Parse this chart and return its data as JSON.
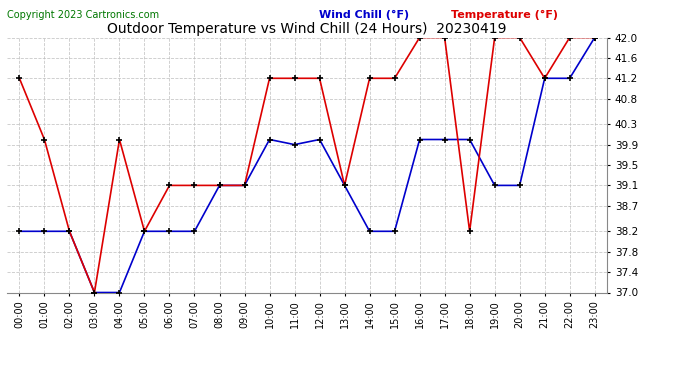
{
  "title": "Outdoor Temperature vs Wind Chill (24 Hours)  20230419",
  "copyright": "Copyright 2023 Cartronics.com",
  "legend_wind_chill": "Wind Chill (°F)",
  "legend_temperature": "Temperature (°F)",
  "hours": [
    0,
    1,
    2,
    3,
    4,
    5,
    6,
    7,
    8,
    9,
    10,
    11,
    12,
    13,
    14,
    15,
    16,
    17,
    18,
    19,
    20,
    21,
    22,
    23
  ],
  "temperature": [
    41.2,
    40.0,
    38.2,
    37.0,
    40.0,
    38.2,
    39.1,
    39.1,
    39.1,
    39.1,
    41.2,
    41.2,
    41.2,
    39.1,
    41.2,
    41.2,
    42.0,
    42.0,
    38.2,
    42.0,
    42.0,
    41.2,
    42.0,
    42.0
  ],
  "wind_chill": [
    38.2,
    38.2,
    38.2,
    37.0,
    37.0,
    38.2,
    38.2,
    38.2,
    39.1,
    39.1,
    40.0,
    39.9,
    40.0,
    39.1,
    38.2,
    38.2,
    40.0,
    40.0,
    40.0,
    39.1,
    39.1,
    41.2,
    41.2,
    42.0
  ],
  "ylim_min": 37.0,
  "ylim_max": 42.0,
  "yticks": [
    37.0,
    37.4,
    37.8,
    38.2,
    38.7,
    39.1,
    39.5,
    39.9,
    40.3,
    40.8,
    41.2,
    41.6,
    42.0
  ],
  "background_color": "#ffffff",
  "grid_color": "#bbbbbb",
  "temp_color": "#dd0000",
  "wind_color": "#0000cc",
  "title_color": "#000000",
  "copyright_color": "#007700",
  "title_fontsize": 10,
  "copyright_fontsize": 7,
  "legend_fontsize": 8,
  "tick_fontsize": 7,
  "ytick_fontsize": 7.5
}
